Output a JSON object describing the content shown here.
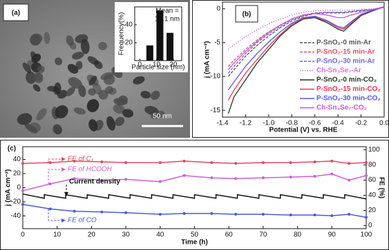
{
  "chart_data": [
    {
      "type": "bar",
      "panel_label": "(a)",
      "annotation": [
        "Mean =",
        "13.1 nm"
      ],
      "scale_bar": "50 nm",
      "xlabel": "Particle size (nm)",
      "ylabel": "Frequency(%)",
      "x": [
        6,
        12,
        18
      ],
      "values": [
        17,
        56,
        31
      ],
      "color": "#111111",
      "xlim": [
        -3,
        25
      ],
      "xticks": [
        0,
        10,
        20
      ],
      "ylim": [
        0,
        60
      ],
      "yticks": [
        20,
        40
      ]
    },
    {
      "type": "line",
      "panel_label": "(b)",
      "xlabel": "Potential (V) vs. RHE",
      "ylabel": "j (mA cm⁻²)",
      "x": [
        -1.35,
        -1.3,
        -1.2,
        -1.1,
        -1.0,
        -0.9,
        -0.8,
        -0.7,
        -0.6,
        -0.5,
        -0.4,
        -0.35,
        -0.3,
        -0.2,
        -0.1,
        0.0
      ],
      "xlim": [
        -1.4,
        0
      ],
      "xticks": [
        -1.4,
        -1.2,
        {
          "value": -1.0,
          "label": "-1.0"
        },
        -0.8,
        -0.6,
        -0.4,
        -0.2,
        {
          "value": 0,
          "label": "0.0"
        }
      ],
      "ylim": [
        -16,
        1
      ],
      "yticks": [
        0,
        -5,
        -10,
        -15
      ],
      "series": [
        {
          "name": "P-SnO₂-0 min-Ar",
          "color": "#555555",
          "line_style": "dashed",
          "values": [
            -10,
            -9,
            -7,
            -5.4,
            -4,
            -2.8,
            -1.8,
            -1.1,
            -0.7,
            -0.6,
            -0.6,
            -0.6,
            -0.5,
            -0.3,
            -0.1,
            0.3
          ]
        },
        {
          "name": "P-SnO₂-15 min-Ar",
          "color": "#e8506a",
          "line_style": "dashed",
          "values": [
            -8.5,
            -7.6,
            -6,
            -4.6,
            -3.4,
            -2.4,
            -1.5,
            -0.9,
            -0.6,
            -0.5,
            -0.5,
            -0.5,
            -0.4,
            -0.2,
            -0.1,
            0.3
          ]
        },
        {
          "name": "P-SnO₂-30 min-Ar",
          "color": "#6a6ae0",
          "line_style": "dashed",
          "values": [
            -9.5,
            -8.5,
            -6.6,
            -5,
            -3.7,
            -2.6,
            -1.6,
            -1,
            -0.6,
            -0.5,
            -0.5,
            -0.5,
            -0.4,
            -0.2,
            -0.1,
            0.3
          ]
        },
        {
          "name": "Ch-Sn₃Se₇-Ar",
          "color": "#e070e0",
          "line_style": "dotted",
          "values": [
            -6,
            -5.3,
            -4.1,
            -3.1,
            -2.2,
            -1.5,
            -0.9,
            -0.5,
            -0.3,
            -0.2,
            -0.2,
            -0.2,
            -0.2,
            -0.1,
            0,
            0.2
          ]
        },
        {
          "name": "P-SnO₂-0 min-CO₂",
          "color": "#1a3a1a",
          "line_style": "solid",
          "values": [
            -15.5,
            -13,
            -10.5,
            -8,
            -6,
            -4,
            -2.5,
            -1.5,
            -1.3,
            -2,
            -3,
            -3.3,
            -2.5,
            -1,
            -0.3,
            0.3
          ]
        },
        {
          "name": "P-SnO₂-15 min-CO₂",
          "color": "#ee3355",
          "line_style": "solid",
          "values": [
            -13.5,
            -12,
            -9.5,
            -7.5,
            -5.5,
            -3.8,
            -2.3,
            -1.4,
            -1.2,
            -1.8,
            -2.8,
            -3,
            -2.3,
            -0.9,
            -0.2,
            0.3
          ]
        },
        {
          "name": "P-SnO₂-30 min-CO₂",
          "color": "#5555ee",
          "line_style": "solid",
          "values": [
            -12,
            -10.8,
            -8.5,
            -6.6,
            -4.9,
            -3.4,
            -2.1,
            -1.3,
            -1.1,
            -1.7,
            -2.6,
            -2.8,
            -2.1,
            -0.8,
            -0.2,
            0.3
          ]
        },
        {
          "name": "Ch-Sn₃Se₇-CO₂",
          "color": "#cc55dd",
          "line_style": "solid",
          "values": [
            -9,
            -8,
            -6.3,
            -4.8,
            -3.5,
            -2.4,
            -1.5,
            -0.9,
            -0.7,
            -0.9,
            -1.3,
            -1.3,
            -1,
            -0.5,
            -0.1,
            0.2
          ]
        }
      ]
    },
    {
      "type": "line",
      "panel_label": "(c)",
      "xlabel": "Time (h)",
      "ylabel": "j (mA cm⁻²)",
      "y2label": "FE (%)",
      "xlim": [
        0,
        100
      ],
      "xticks": [
        0,
        10,
        20,
        30,
        40,
        50,
        60,
        70,
        80,
        90,
        100
      ],
      "ylim": [
        -58,
        58
      ],
      "yticks": [
        -40,
        -20,
        0,
        20,
        40
      ],
      "y2lim": [
        -4,
        104
      ],
      "y2ticks": [
        0,
        20,
        40,
        60,
        80,
        100
      ],
      "series": [
        {
          "name": "FE of C₁",
          "color": "#e8455e",
          "axis": "y2",
          "markers": true,
          "x": [
            0,
            8,
            15,
            23,
            30,
            40,
            47,
            55,
            62,
            70,
            78,
            85,
            90,
            95,
            100
          ],
          "values": [
            82,
            83,
            85,
            84,
            83,
            83,
            85,
            83,
            82,
            83,
            83,
            84,
            85,
            82,
            83
          ]
        },
        {
          "name": "FE of HCOOH",
          "color": "#c95fd6",
          "axis": "y2",
          "markers": true,
          "x": [
            0,
            8,
            15,
            23,
            30,
            40,
            47,
            55,
            62,
            70,
            78,
            85,
            90,
            95,
            100
          ],
          "values": [
            46,
            55,
            62,
            60,
            61,
            58,
            66,
            63,
            62,
            63,
            64,
            65,
            68,
            60,
            66
          ]
        },
        {
          "name": "Current density",
          "color": "#111111",
          "markers": false,
          "x": [
            0,
            6.25,
            6.25,
            12.5,
            12.5,
            18.75,
            18.75,
            25,
            25,
            31.25,
            31.25,
            37.5,
            37.5,
            43.75,
            43.75,
            50,
            50,
            56.25,
            56.25,
            62.5,
            62.5,
            68.75,
            68.75,
            75,
            75,
            81.25,
            81.25,
            87.5,
            87.5,
            93.75,
            93.75,
            100
          ],
          "values": [
            -9,
            -15,
            -10,
            -15,
            -10,
            -15,
            -10,
            -15,
            -10,
            -15,
            -10,
            -15,
            -10,
            -15,
            -10,
            -15,
            -10,
            -15,
            -10,
            -15,
            -10,
            -15,
            -10,
            -15,
            -10,
            -15,
            -10,
            -15,
            -10,
            -15,
            -10,
            -16
          ]
        },
        {
          "name": "FE of CO",
          "color": "#4a5ad8",
          "axis": "y2",
          "markers": true,
          "x": [
            0,
            8,
            15,
            23,
            30,
            40,
            47,
            55,
            62,
            70,
            78,
            85,
            90,
            95,
            100
          ],
          "values": [
            28,
            22,
            19,
            18,
            17,
            15,
            16,
            16,
            15,
            15,
            14,
            14,
            13,
            15,
            11
          ]
        }
      ]
    }
  ]
}
